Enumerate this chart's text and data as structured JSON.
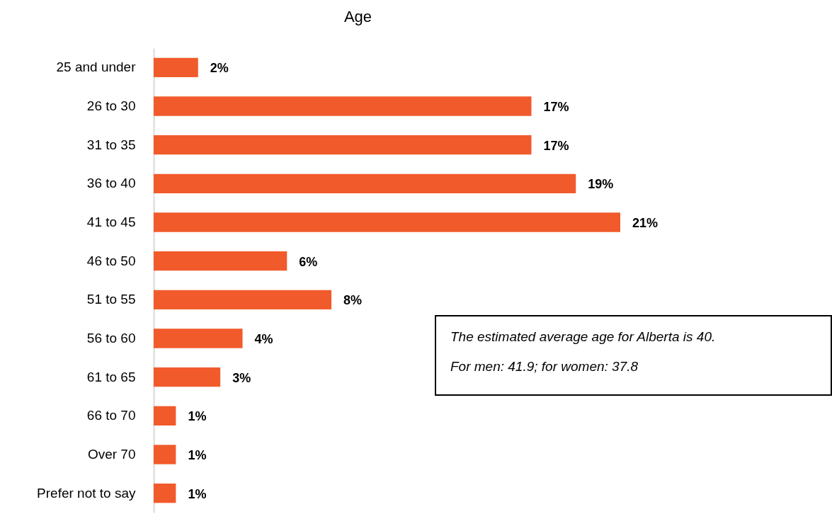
{
  "chart_data": {
    "type": "bar",
    "orientation": "horizontal",
    "title": "Age",
    "categories": [
      "25 and under",
      "26 to 30",
      "31 to 35",
      "36 to 40",
      "41 to 45",
      "46 to 50",
      "51 to 55",
      "56 to 60",
      "61 to 65",
      "66 to 70",
      "Over 70",
      "Prefer not to say"
    ],
    "values": [
      2,
      17,
      17,
      19,
      21,
      6,
      8,
      4,
      3,
      1,
      1,
      1
    ],
    "value_labels": [
      "2%",
      "17%",
      "17%",
      "19%",
      "21%",
      "6%",
      "8%",
      "4%",
      "3%",
      "1%",
      "1%",
      "1%"
    ],
    "color": "#f15a2b",
    "annotations": [
      "The estimated average age for Alberta is 40.",
      "For men: 41.9; for women: 37.8"
    ]
  }
}
